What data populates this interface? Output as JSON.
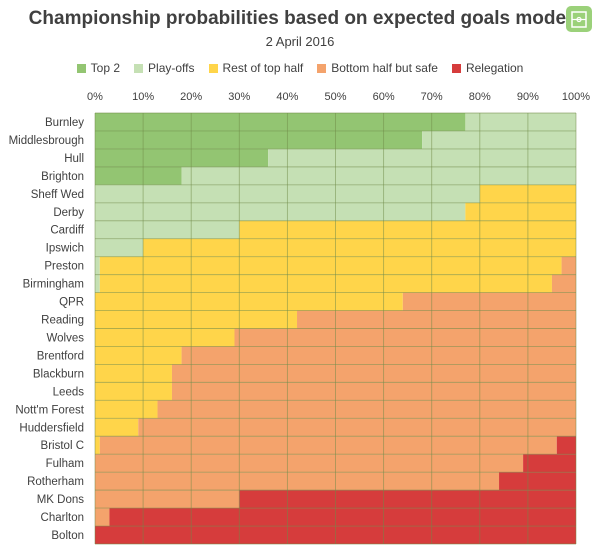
{
  "chart_data": {
    "type": "bar",
    "orientation": "horizontal",
    "stacked": true,
    "title": "Championship probabilities based on expected goals model",
    "subtitle": "2 April 2016",
    "xlim": [
      0,
      100
    ],
    "x_ticks": [
      "0%",
      "10%",
      "20%",
      "30%",
      "40%",
      "50%",
      "60%",
      "70%",
      "80%",
      "90%",
      "100%"
    ],
    "grid": true,
    "legend_position": "top",
    "categories": [
      "Burnley",
      "Middlesbrough",
      "Hull",
      "Brighton",
      "Sheff Wed",
      "Derby",
      "Cardiff",
      "Ipswich",
      "Preston",
      "Birmingham",
      "QPR",
      "Reading",
      "Wolves",
      "Brentford",
      "Blackburn",
      "Leeds",
      "Nott'm Forest",
      "Huddersfield",
      "Bristol C",
      "Fulham",
      "Rotherham",
      "MK Dons",
      "Charlton",
      "Bolton"
    ],
    "series": [
      {
        "name": "Top 2",
        "color": "#93c572",
        "values": [
          77,
          68,
          36,
          18,
          0,
          0,
          0,
          0,
          0,
          0,
          0,
          0,
          0,
          0,
          0,
          0,
          0,
          0,
          0,
          0,
          0,
          0,
          0,
          0
        ]
      },
      {
        "name": "Play-offs",
        "color": "#c5e0b4",
        "values": [
          23,
          32,
          64,
          82,
          80,
          77,
          30,
          10,
          1,
          1,
          0,
          0,
          0,
          0,
          0,
          0,
          0,
          0,
          0,
          0,
          0,
          0,
          0,
          0
        ]
      },
      {
        "name": "Rest of top half",
        "color": "#ffd54a",
        "values": [
          0,
          0,
          0,
          0,
          20,
          23,
          70,
          90,
          96,
          94,
          64,
          42,
          29,
          18,
          16,
          16,
          13,
          9,
          1,
          0,
          0,
          0,
          0,
          0
        ]
      },
      {
        "name": "Bottom half but safe",
        "color": "#f4a36c",
        "values": [
          0,
          0,
          0,
          0,
          0,
          0,
          0,
          0,
          3,
          5,
          36,
          58,
          71,
          82,
          84,
          84,
          87,
          91,
          95,
          89,
          84,
          30,
          3,
          0
        ]
      },
      {
        "name": "Relegation",
        "color": "#d63c3c",
        "values": [
          0,
          0,
          0,
          0,
          0,
          0,
          0,
          0,
          0,
          0,
          0,
          0,
          0,
          0,
          0,
          0,
          0,
          0,
          4,
          11,
          16,
          70,
          97,
          100
        ]
      }
    ]
  }
}
